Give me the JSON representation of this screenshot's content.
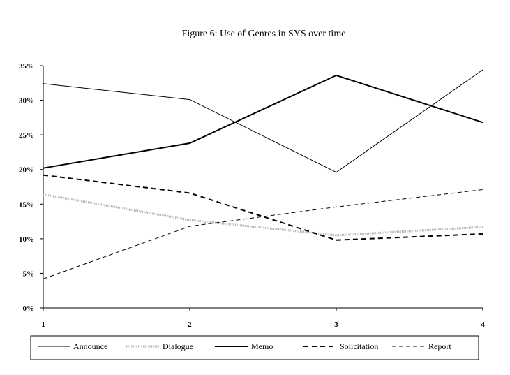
{
  "chart_data": {
    "type": "line",
    "title": "Figure 6: Use of Genres in SYS over time",
    "xlabel": "",
    "ylabel": "",
    "categories": [
      "1",
      "2",
      "3",
      "4"
    ],
    "y_ticks": [
      "0%",
      "5%",
      "10%",
      "15%",
      "20%",
      "25%",
      "30%",
      "35%"
    ],
    "ylim": [
      0,
      35
    ],
    "grid": false,
    "legend_position": "bottom",
    "series": [
      {
        "name": "Announce",
        "values": [
          32.4,
          30.1,
          19.6,
          34.4
        ],
        "style": "thin-solid",
        "color": "#000000"
      },
      {
        "name": "Dialogue",
        "values": [
          16.4,
          12.7,
          10.5,
          11.7
        ],
        "style": "dotted-gray",
        "color": "#b0b0b0"
      },
      {
        "name": "Memo",
        "values": [
          20.2,
          23.8,
          33.6,
          26.8
        ],
        "style": "thick-solid",
        "color": "#000000"
      },
      {
        "name": "Solicitation",
        "values": [
          19.2,
          16.6,
          9.8,
          10.7
        ],
        "style": "thick-dash",
        "color": "#000000"
      },
      {
        "name": "Report",
        "values": [
          4.2,
          11.8,
          14.6,
          17.1
        ],
        "style": "thin-dash",
        "color": "#000000"
      }
    ]
  }
}
